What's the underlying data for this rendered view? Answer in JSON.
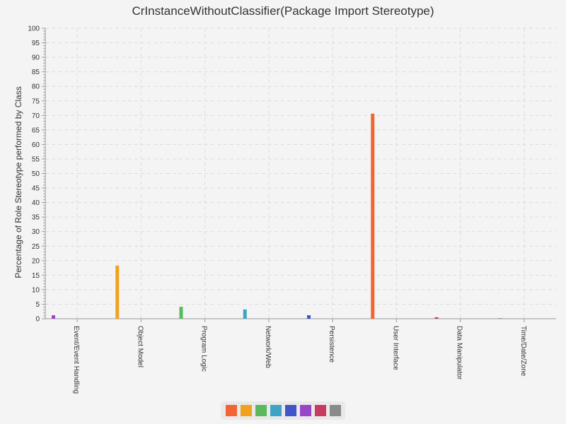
{
  "chart_data": {
    "type": "bar",
    "title": "CrInstanceWithoutClassifier(Package Import Stereotype)",
    "ylabel": "Percentage of Role Stereotype performed by Class",
    "xlabel": "",
    "ylim": [
      0,
      100
    ],
    "yticks": [
      0,
      5,
      10,
      15,
      20,
      25,
      30,
      35,
      40,
      45,
      50,
      55,
      60,
      65,
      70,
      75,
      80,
      85,
      90,
      95,
      100
    ],
    "categories": [
      "Event/Event Handling",
      "Object Model",
      "Program Logic",
      "Network/Web",
      "Persistence",
      "User Interface",
      "Data Manipulator",
      "Time/Date/Zone"
    ],
    "grid": true,
    "legend_position": "bottom",
    "series_colors": [
      "#f26431",
      "#f2a11f",
      "#5cb85c",
      "#3ea3c6",
      "#3f55c8",
      "#9845c6",
      "#c93a63",
      "#8a8a8a"
    ],
    "bars": [
      {
        "category_index": 0,
        "value": 1.2,
        "color": "#9845c6"
      },
      {
        "category_index": 1,
        "value": 18.3,
        "color": "#f2a11f"
      },
      {
        "category_index": 2,
        "value": 4.1,
        "color": "#5cb85c"
      },
      {
        "category_index": 3,
        "value": 3.2,
        "color": "#3ea3c6"
      },
      {
        "category_index": 4,
        "value": 1.2,
        "color": "#3f55c8"
      },
      {
        "category_index": 5,
        "value": 70.6,
        "color": "#f26431"
      },
      {
        "category_index": 6,
        "value": 0.5,
        "color": "#c93a63"
      },
      {
        "category_index": 7,
        "value": 0.2,
        "color": "#8a8a8a"
      }
    ]
  }
}
